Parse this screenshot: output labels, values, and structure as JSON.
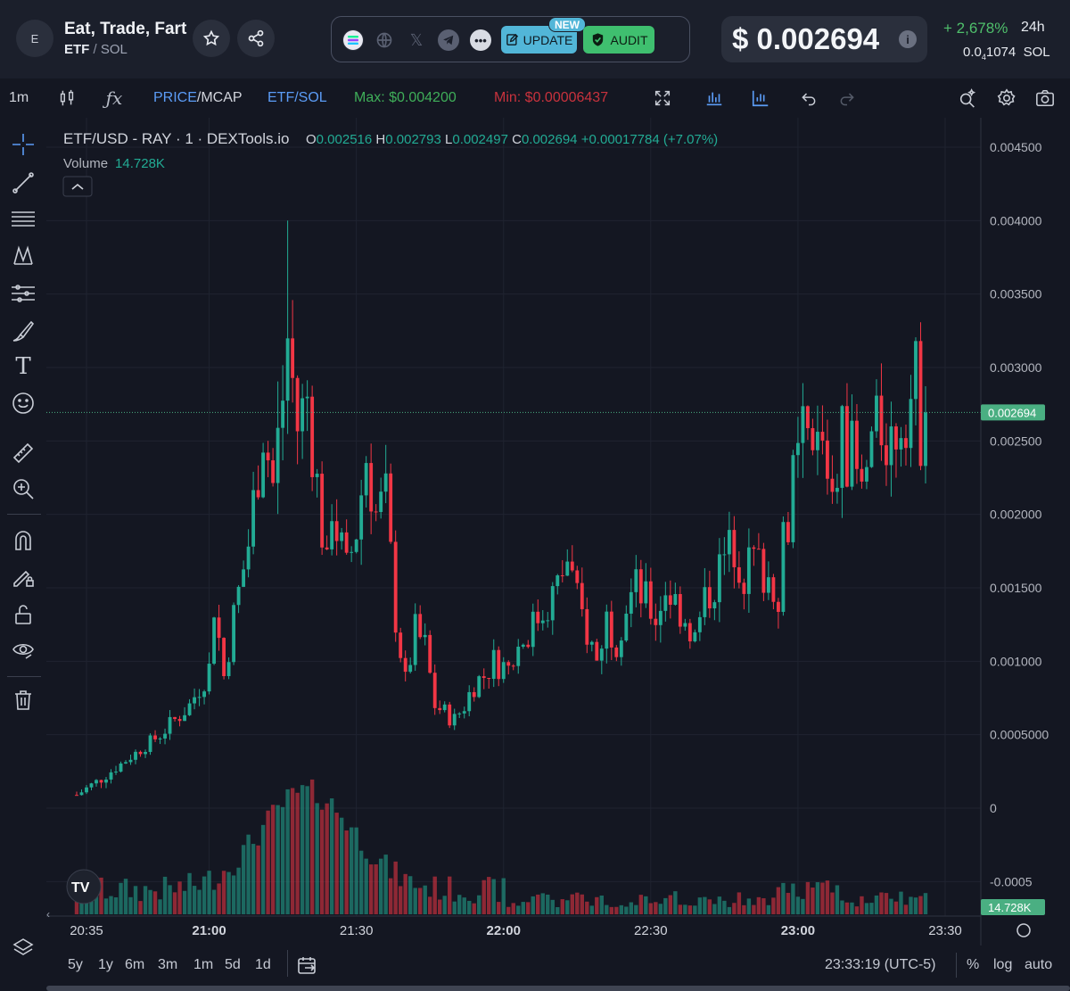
{
  "header": {
    "avatar_letter": "E",
    "token_name": "Eat, Trade, Fart",
    "symbol": "ETF",
    "pair_sep": "/",
    "quote": "SOL",
    "update_label": "UPDATE",
    "new_badge": "NEW",
    "audit_label": "AUDIT",
    "price_usd": "$ 0.002694",
    "change_24h": "+ 2,678%",
    "period": "24h",
    "price_sol_prefix": "0.0",
    "price_sol_sub": "4",
    "price_sol_digits": "1074",
    "price_sol_unit": "SOL",
    "icons": [
      "star-icon",
      "share-icon",
      "solana-icon",
      "globe-icon",
      "x-icon",
      "telegram-icon",
      "more-icon",
      "edit-icon",
      "shield-check-icon",
      "info-icon"
    ]
  },
  "toolbar": {
    "interval": "1m",
    "price_label": "PRICE",
    "mcap_label": "/MCAP",
    "pair_a": "ETF",
    "pair_b": "/SOL",
    "max_label": "Max: $0.004200",
    "min_label": "Min: $0.00006437"
  },
  "chart_data": {
    "type": "candlestick",
    "legend_title": "ETF/USD - RAY · 1 · DEXTools.io",
    "ohlc": {
      "o_label": "O",
      "o": "0.002516",
      "h_label": "H",
      "h": "0.002793",
      "l_label": "L",
      "l": "0.002497",
      "c_label": "C",
      "c": "0.002694",
      "change": "+0.00017784 (+7.07%)"
    },
    "volume_label": "Volume",
    "volume_value": "14.728K",
    "last_price_tag": "0.002694",
    "volume_tag": "14.728K",
    "y_ticks": [
      "0.004500",
      "0.004000",
      "0.003500",
      "0.003000",
      "0.002500",
      "0.002000",
      "0.001500",
      "0.001000",
      "0.0005000",
      "0",
      "-0.0005"
    ],
    "y_tick_values": [
      0.0045,
      0.004,
      0.0035,
      0.003,
      0.0025,
      0.002,
      0.0015,
      0.001,
      0.0005,
      0,
      -0.0005
    ],
    "x_ticks": [
      "20:35",
      "21:00",
      "21:30",
      "22:00",
      "22:30",
      "23:00",
      "23:30"
    ],
    "x_tick_minutes": [
      5,
      30,
      60,
      90,
      120,
      150,
      180
    ],
    "x_tick_bold": [
      false,
      true,
      false,
      true,
      false,
      true,
      false
    ],
    "time_start": "20:30",
    "y_range": [
      -0.0005,
      0.0046
    ],
    "close_path": [
      [
        3,
        9e-05
      ],
      [
        8,
        0.0002
      ],
      [
        14,
        0.00035
      ],
      [
        20,
        0.0005
      ],
      [
        26,
        0.0007
      ],
      [
        30,
        0.00095
      ],
      [
        31,
        0.0014
      ],
      [
        33,
        0.0009
      ],
      [
        35,
        0.0013
      ],
      [
        38,
        0.0018
      ],
      [
        41,
        0.0026
      ],
      [
        43,
        0.0022
      ],
      [
        45,
        0.0028
      ],
      [
        46,
        0.0032
      ],
      [
        48,
        0.0026
      ],
      [
        50,
        0.0028
      ],
      [
        52,
        0.0022
      ],
      [
        54,
        0.0016
      ],
      [
        55,
        0.0021
      ],
      [
        56,
        0.0019
      ],
      [
        58,
        0.0016
      ],
      [
        60,
        0.0019
      ],
      [
        62,
        0.0024
      ],
      [
        64,
        0.002
      ],
      [
        66,
        0.0021
      ],
      [
        67,
        0.0017
      ],
      [
        68,
        0.0013
      ],
      [
        70,
        0.00085
      ],
      [
        72,
        0.0012
      ],
      [
        74,
        0.0011
      ],
      [
        76,
        0.0007
      ],
      [
        78,
        0.00065
      ],
      [
        80,
        0.0006
      ],
      [
        82,
        0.0007
      ],
      [
        84,
        0.00085
      ],
      [
        86,
        0.0009
      ],
      [
        88,
        0.001
      ],
      [
        91,
        0.00095
      ],
      [
        93,
        0.0011
      ],
      [
        95,
        0.0012
      ],
      [
        97,
        0.0013
      ],
      [
        99,
        0.0014
      ],
      [
        101,
        0.0015
      ],
      [
        103,
        0.0017
      ],
      [
        105,
        0.0014
      ],
      [
        107,
        0.0012
      ],
      [
        109,
        0.001
      ],
      [
        111,
        0.0013
      ],
      [
        113,
        0.00115
      ],
      [
        115,
        0.0014
      ],
      [
        117,
        0.0015
      ],
      [
        119,
        0.0014
      ],
      [
        121,
        0.0013
      ],
      [
        123,
        0.0015
      ],
      [
        125,
        0.0014
      ],
      [
        127,
        0.0013
      ],
      [
        129,
        0.00115
      ],
      [
        131,
        0.0014
      ],
      [
        133,
        0.00155
      ],
      [
        135,
        0.0017
      ],
      [
        137,
        0.0018
      ],
      [
        139,
        0.0016
      ],
      [
        141,
        0.0017
      ],
      [
        143,
        0.0016
      ],
      [
        146,
        0.0015
      ],
      [
        147,
        0.0018
      ],
      [
        149,
        0.0022
      ],
      [
        151,
        0.0025
      ],
      [
        153,
        0.0024
      ],
      [
        155,
        0.0025
      ],
      [
        157,
        0.0022
      ],
      [
        159,
        0.0025
      ],
      [
        161,
        0.0024
      ],
      [
        163,
        0.0021
      ],
      [
        165,
        0.0025
      ],
      [
        167,
        0.0026
      ],
      [
        169,
        0.0025
      ],
      [
        171,
        0.0027
      ],
      [
        173,
        0.0028
      ],
      [
        174,
        0.0029
      ],
      [
        175,
        0.0026
      ],
      [
        176,
        0.002694
      ]
    ],
    "volume_vol_range": [
      0,
      100
    ],
    "timeframe_note": ""
  },
  "bottom_bar": {
    "ranges": [
      "5y",
      "1y",
      "6m",
      "3m",
      "1m",
      "5d",
      "1d"
    ],
    "clock": "23:33:19 (UTC-5)",
    "pct": "%",
    "log": "log",
    "auto": "auto"
  },
  "colors": {
    "up": "#22ab94",
    "down": "#f23645",
    "bg": "#141722",
    "price_tag": "#4aaf82",
    "accent_blue": "#5b9cf6"
  }
}
